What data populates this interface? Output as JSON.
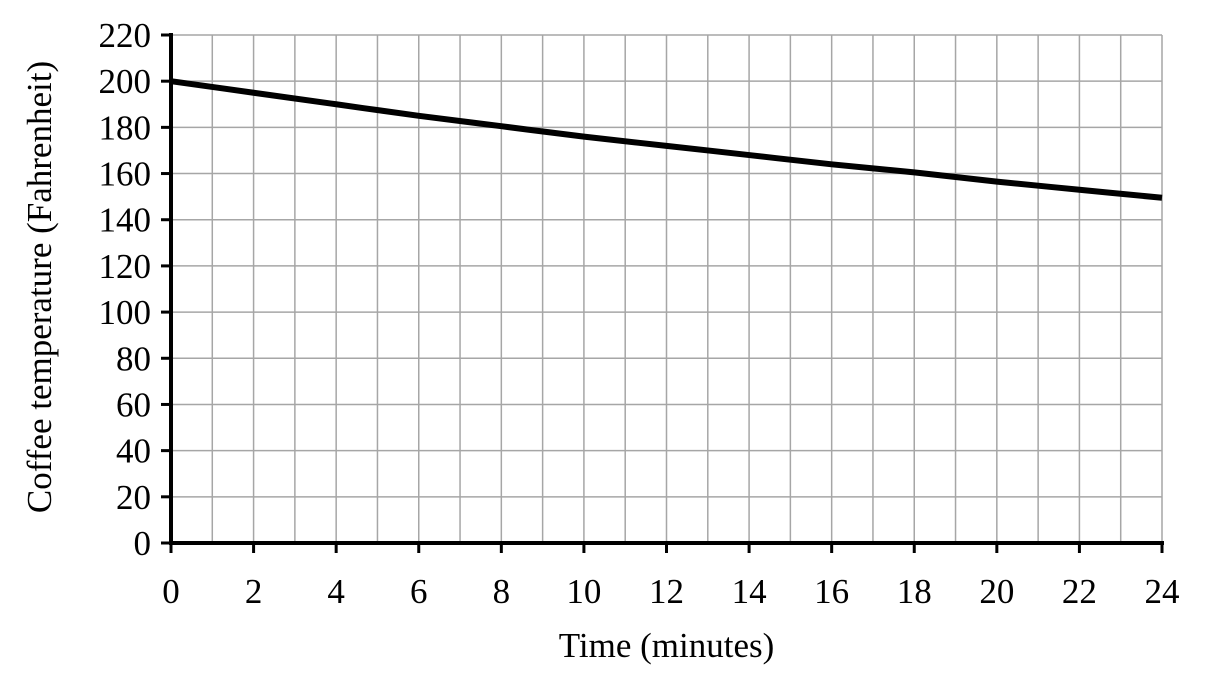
{
  "chart_data": {
    "type": "line",
    "title": "",
    "xlabel": "Time (minutes)",
    "ylabel": "Coffee temperature  (Fahrenheit)",
    "xlim": [
      0,
      24
    ],
    "ylim": [
      0,
      220
    ],
    "x_ticks": [
      "0",
      "2",
      "4",
      "6",
      "8",
      "10",
      "12",
      "14",
      "16",
      "18",
      "20",
      "22",
      "24"
    ],
    "y_ticks": [
      "0",
      "20",
      "40",
      "60",
      "80",
      "100",
      "120",
      "140",
      "160",
      "180",
      "200",
      "220"
    ],
    "grid": true,
    "grid_x_step": 1,
    "grid_y_step": 20,
    "series": [
      {
        "x": [
          0,
          2,
          4,
          6,
          8,
          10,
          12,
          14,
          16,
          18,
          20,
          22,
          24
        ],
        "y": [
          200,
          195,
          190,
          185,
          180.5,
          176,
          172,
          168,
          164,
          160.5,
          156.5,
          153,
          149.5
        ]
      }
    ],
    "colors": {
      "line": "#000000",
      "grid": "#a6a6a6",
      "axis": "#000000"
    }
  }
}
